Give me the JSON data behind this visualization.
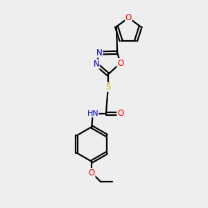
{
  "background_color": "#eeeeee",
  "atom_colors": {
    "C": "#000000",
    "N": "#0000cc",
    "O": "#ff0000",
    "S": "#ccaa00",
    "H": "#555555"
  },
  "bond_color": "#000000",
  "figsize": [
    3.0,
    3.0
  ],
  "dpi": 100
}
